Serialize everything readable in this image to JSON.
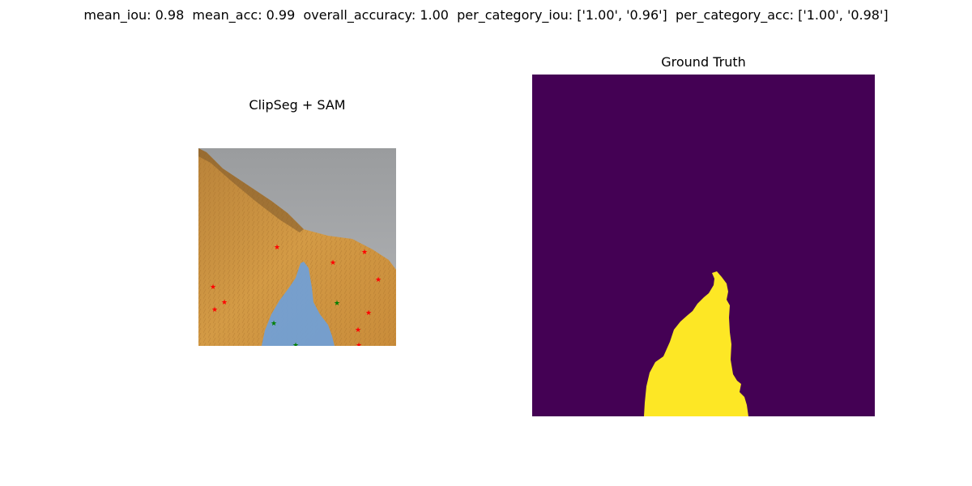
{
  "figure": {
    "suptitle": "mean_iou: 0.98  mean_acc: 0.99  overall_accuracy: 1.00  per_category_iou: ['1.00', '0.96']  per_category_acc: ['1.00', '0.98']"
  },
  "left_panel": {
    "title": "ClipSeg + SAM",
    "image_desc": "mountain-slope-photo",
    "mask_overlay_color": "#6fa0d8",
    "negative_point_color": "#ff0000",
    "positive_point_color": "#008000"
  },
  "right_panel": {
    "title": "Ground Truth",
    "background_color": "#440154",
    "mask_color": "#fde725"
  }
}
